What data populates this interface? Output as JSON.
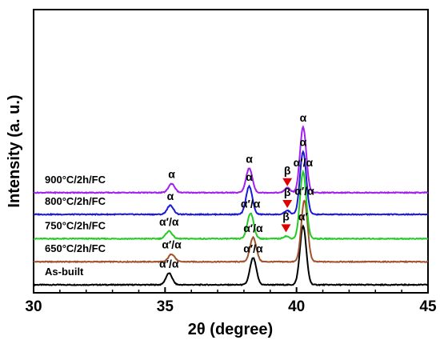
{
  "chart_data": {
    "type": "line",
    "xlabel": "2θ (degree)",
    "ylabel": "Intensity (a. u.)",
    "xlim": [
      30,
      45
    ],
    "x_ticks": [
      "30",
      "35",
      "40",
      "45"
    ],
    "grid": false,
    "y_ticks_visible": false,
    "series": [
      {
        "name": "As-built",
        "color": "#000000",
        "baseline": 0,
        "peaks": [
          {
            "x": 35.15,
            "height": 0.45,
            "label": "α′/α"
          },
          {
            "x": 38.35,
            "height": 1.05,
            "label": "α′/α"
          },
          {
            "x": 40.25,
            "height": 2.3,
            "label": "α′"
          }
        ]
      },
      {
        "name": "650°C/2h/FC",
        "color": "#a0522d",
        "baseline": 0.9,
        "peaks": [
          {
            "x": 35.25,
            "height": 0.3,
            "label": "α′/α"
          },
          {
            "x": 38.35,
            "height": 0.95,
            "label": "α′/α"
          },
          {
            "x": 40.3,
            "height": 2.4,
            "label": "α′/α"
          }
        ]
      },
      {
        "name": "750°C/2h/FC",
        "color": "#22cc22",
        "baseline": 1.8,
        "peaks": [
          {
            "x": 35.15,
            "height": 0.3,
            "label": "α′/α"
          },
          {
            "x": 38.25,
            "height": 1.0,
            "label": "α′/α"
          },
          {
            "x": 39.6,
            "height": 0.1,
            "label": "β",
            "marker": true
          },
          {
            "x": 40.25,
            "height": 2.6,
            "label": "α′/α"
          }
        ]
      },
      {
        "name": "800°C/2h/FC",
        "color": "#1a1ad6",
        "baseline": 2.75,
        "peaks": [
          {
            "x": 35.2,
            "height": 0.35,
            "label": "α"
          },
          {
            "x": 38.2,
            "height": 1.1,
            "label": "α"
          },
          {
            "x": 39.65,
            "height": 0.15,
            "label": "β",
            "marker": true
          },
          {
            "x": 40.25,
            "height": 2.45,
            "label": "α"
          }
        ]
      },
      {
        "name": "900°C/2h/FC",
        "color": "#a020f0",
        "baseline": 3.6,
        "peaks": [
          {
            "x": 35.25,
            "height": 0.35,
            "label": "α"
          },
          {
            "x": 38.2,
            "height": 0.95,
            "label": "α"
          },
          {
            "x": 39.65,
            "height": 0.2,
            "label": "β",
            "marker": true
          },
          {
            "x": 40.25,
            "height": 2.55,
            "label": "α"
          }
        ]
      }
    ],
    "marker_color": "#e00000"
  }
}
